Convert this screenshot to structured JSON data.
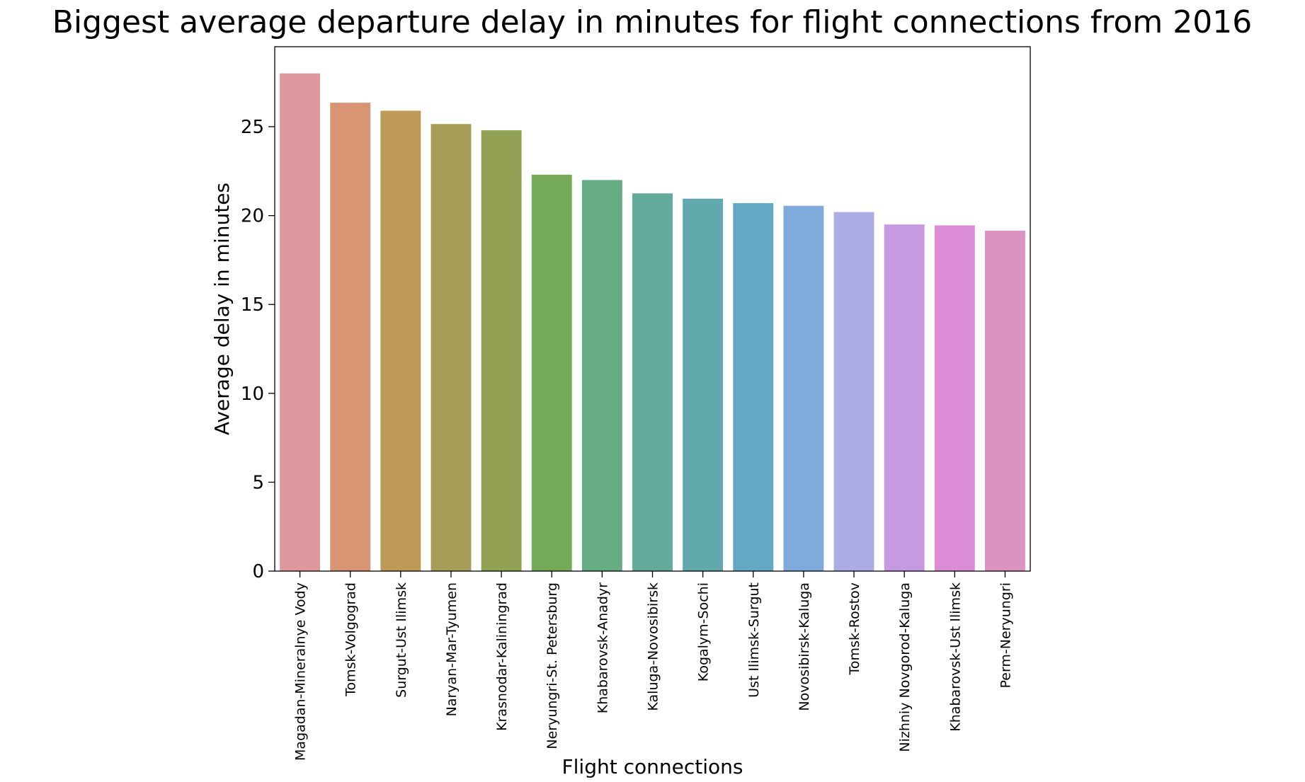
{
  "chart_data": {
    "type": "bar",
    "title": "Biggest average departure delay in minutes for flight connections from 2016",
    "xlabel": "Flight connections",
    "ylabel": "Average delay in minutes",
    "ylim": [
      0,
      29.5
    ],
    "yticks": [
      0,
      5,
      10,
      15,
      20,
      25
    ],
    "grid": false,
    "categories": [
      "Magadan-Mineralnye Vody",
      "Tomsk-Volgograd",
      "Surgut-Ust Ilimsk",
      "Naryan-Mar-Tyumen",
      "Krasnodar-Kaliningrad",
      "Neryungri-St. Petersburg",
      "Khabarovsk-Anadyr",
      "Kaluga-Novosibirsk",
      "Kogalym-Sochi",
      "Ust Ilimsk-Surgut",
      "Novosibirsk-Kaluga",
      "Tomsk-Rostov",
      "Nizhniy Novgorod-Kaluga",
      "Khabarovsk-Ust Ilimsk",
      "Perm-Neryungri"
    ],
    "values": [
      28.0,
      26.35,
      25.9,
      25.15,
      24.8,
      22.3,
      22.0,
      21.25,
      20.95,
      20.7,
      20.55,
      20.2,
      19.5,
      19.45,
      19.15
    ],
    "colors": [
      "#df979e",
      "#d79574",
      "#bd9a58",
      "#a69d56",
      "#93a155",
      "#75ab58",
      "#65ab84",
      "#63aa9a",
      "#62a9ad",
      "#64a9c3",
      "#7eaadc",
      "#acabe3",
      "#c699e0",
      "#da8dd5",
      "#db93bf"
    ]
  }
}
